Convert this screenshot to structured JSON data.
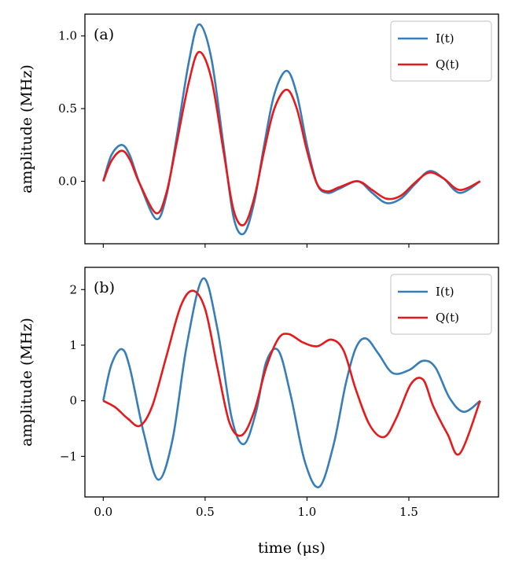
{
  "figure": {
    "xlabel": "time (μs)"
  },
  "chart_data": [
    {
      "type": "line",
      "panel_label": "(a)",
      "ylabel": "amplitude (MHz)",
      "xlabel": "",
      "xlim": [
        -0.09,
        1.94
      ],
      "ylim": [
        -0.43,
        1.15
      ],
      "xticks": [
        0.0,
        0.5,
        1.0,
        1.5
      ],
      "xtick_labels": [],
      "yticks": [
        0.0,
        0.5,
        1.0
      ],
      "ytick_labels": [
        "0.0",
        "0.5",
        "1.0"
      ],
      "legend_position": "top-right",
      "series": [
        {
          "name": "I(t)",
          "color": "#377eb8",
          "x": [
            0.0,
            0.04,
            0.09,
            0.13,
            0.18,
            0.26,
            0.31,
            0.36,
            0.42,
            0.47,
            0.53,
            0.59,
            0.64,
            0.69,
            0.74,
            0.79,
            0.84,
            0.9,
            0.95,
            1.0,
            1.05,
            1.1,
            1.16,
            1.25,
            1.32,
            1.39,
            1.46,
            1.53,
            1.6,
            1.67,
            1.75,
            1.85
          ],
          "y": [
            0.0,
            0.18,
            0.25,
            0.18,
            -0.02,
            -0.26,
            -0.1,
            0.3,
            0.82,
            1.08,
            0.85,
            0.25,
            -0.25,
            -0.36,
            -0.15,
            0.25,
            0.6,
            0.76,
            0.6,
            0.25,
            -0.02,
            -0.08,
            -0.05,
            0.0,
            -0.08,
            -0.15,
            -0.12,
            -0.02,
            0.07,
            0.02,
            -0.08,
            0.0
          ]
        },
        {
          "name": "Q(t)",
          "color": "#e41a1c",
          "x": [
            0.0,
            0.04,
            0.09,
            0.13,
            0.18,
            0.26,
            0.31,
            0.36,
            0.42,
            0.47,
            0.53,
            0.59,
            0.64,
            0.69,
            0.74,
            0.79,
            0.84,
            0.9,
            0.95,
            1.0,
            1.05,
            1.1,
            1.16,
            1.25,
            1.32,
            1.39,
            1.46,
            1.53,
            1.6,
            1.67,
            1.75,
            1.85
          ],
          "y": [
            0.0,
            0.14,
            0.21,
            0.15,
            -0.02,
            -0.22,
            -0.08,
            0.26,
            0.68,
            0.89,
            0.71,
            0.21,
            -0.2,
            -0.3,
            -0.12,
            0.21,
            0.5,
            0.63,
            0.5,
            0.21,
            -0.02,
            -0.07,
            -0.04,
            0.0,
            -0.06,
            -0.12,
            -0.1,
            -0.01,
            0.06,
            0.02,
            -0.06,
            0.0
          ]
        }
      ]
    },
    {
      "type": "line",
      "panel_label": "(b)",
      "ylabel": "amplitude (MHz)",
      "xlabel": "time (μs)",
      "xlim": [
        -0.09,
        1.94
      ],
      "ylim": [
        -1.73,
        2.4
      ],
      "xticks": [
        0.0,
        0.5,
        1.0,
        1.5
      ],
      "xtick_labels": [
        "0.0",
        "0.5",
        "1.0",
        "1.5"
      ],
      "yticks": [
        -1,
        0,
        1,
        2
      ],
      "ytick_labels": [
        "−1",
        "0",
        "1",
        "2"
      ],
      "legend_position": "top-right",
      "series": [
        {
          "name": "I(t)",
          "color": "#377eb8",
          "x": [
            0.0,
            0.04,
            0.09,
            0.13,
            0.2,
            0.27,
            0.34,
            0.41,
            0.49,
            0.56,
            0.63,
            0.69,
            0.75,
            0.8,
            0.86,
            0.92,
            0.99,
            1.06,
            1.13,
            1.19,
            1.24,
            1.29,
            1.35,
            1.42,
            1.5,
            1.57,
            1.63,
            1.7,
            1.77,
            1.85
          ],
          "y": [
            0.0,
            0.65,
            0.93,
            0.6,
            -0.6,
            -1.42,
            -0.7,
            1.0,
            2.2,
            1.3,
            -0.3,
            -0.78,
            -0.2,
            0.7,
            0.9,
            0.1,
            -1.1,
            -1.55,
            -0.8,
            0.3,
            0.95,
            1.12,
            0.85,
            0.5,
            0.55,
            0.72,
            0.6,
            0.05,
            -0.2,
            0.0
          ]
        },
        {
          "name": "Q(t)",
          "color": "#e41a1c",
          "x": [
            0.0,
            0.06,
            0.12,
            0.18,
            0.24,
            0.31,
            0.38,
            0.44,
            0.5,
            0.56,
            0.62,
            0.68,
            0.74,
            0.8,
            0.86,
            0.91,
            0.98,
            1.05,
            1.12,
            1.18,
            1.24,
            1.31,
            1.38,
            1.44,
            1.51,
            1.57,
            1.62,
            1.69,
            1.75,
            1.85
          ],
          "y": [
            0.0,
            -0.12,
            -0.32,
            -0.45,
            -0.1,
            0.8,
            1.7,
            1.98,
            1.65,
            0.6,
            -0.4,
            -0.62,
            -0.2,
            0.6,
            1.12,
            1.2,
            1.05,
            0.98,
            1.1,
            0.9,
            0.2,
            -0.45,
            -0.65,
            -0.3,
            0.3,
            0.38,
            -0.1,
            -0.6,
            -0.95,
            0.0
          ]
        }
      ]
    }
  ]
}
